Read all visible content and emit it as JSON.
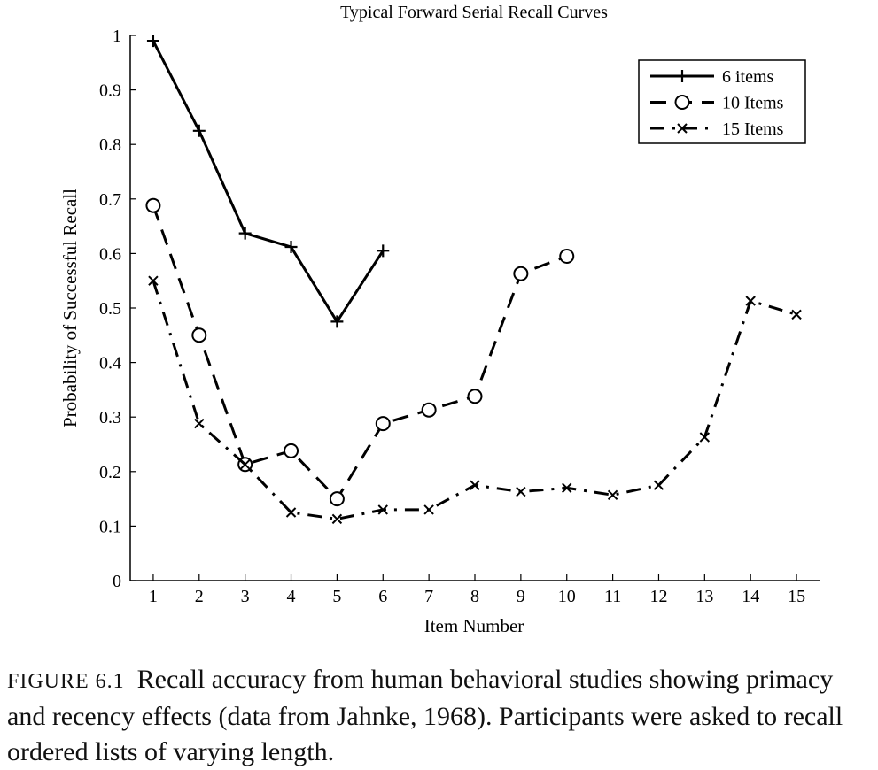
{
  "chart_data": {
    "type": "line",
    "title": "Typical Forward Serial Recall Curves",
    "xlabel": "Item Number",
    "ylabel": "Probability of Successful Recall",
    "xlim": [
      0.5,
      15.5
    ],
    "ylim": [
      0,
      1
    ],
    "xticks": [
      1,
      2,
      3,
      4,
      5,
      6,
      7,
      8,
      9,
      10,
      11,
      12,
      13,
      14,
      15
    ],
    "yticks": [
      0,
      0.1,
      0.2,
      0.3,
      0.4,
      0.5,
      0.6,
      0.7,
      0.8,
      0.9,
      1
    ],
    "ytick_labels": [
      "0",
      "0.1",
      "0.2",
      "0.3",
      "0.4",
      "0.5",
      "0.6",
      "0.7",
      "0.8",
      "0.9",
      "1"
    ],
    "grid": false,
    "legend_position": "top-right",
    "series": [
      {
        "name": "6 items",
        "line_style": "solid",
        "marker": "plus",
        "x": [
          1,
          2,
          3,
          4,
          5,
          6
        ],
        "values": [
          0.99,
          0.825,
          0.637,
          0.612,
          0.475,
          0.605
        ]
      },
      {
        "name": "10 Items",
        "line_style": "dashed",
        "marker": "circle",
        "x": [
          1,
          2,
          3,
          4,
          5,
          6,
          7,
          8,
          9,
          10
        ],
        "values": [
          0.688,
          0.45,
          0.213,
          0.238,
          0.15,
          0.288,
          0.313,
          0.338,
          0.563,
          0.595
        ]
      },
      {
        "name": "15 Items",
        "line_style": "dashdot",
        "marker": "x",
        "x": [
          1,
          2,
          3,
          4,
          5,
          6,
          7,
          8,
          9,
          10,
          11,
          12,
          13,
          14,
          15
        ],
        "values": [
          0.55,
          0.288,
          0.213,
          0.125,
          0.113,
          0.13,
          0.13,
          0.175,
          0.163,
          0.17,
          0.157,
          0.175,
          0.263,
          0.513,
          0.488
        ]
      }
    ]
  },
  "caption": {
    "label": "FIGURE 6.1",
    "text": "Recall accuracy from human behavioral studies showing primacy and recency effects (data from Jahnke, 1968). Participants were asked to recall ordered lists of varying length."
  },
  "colors": {
    "ink": "#000000"
  }
}
